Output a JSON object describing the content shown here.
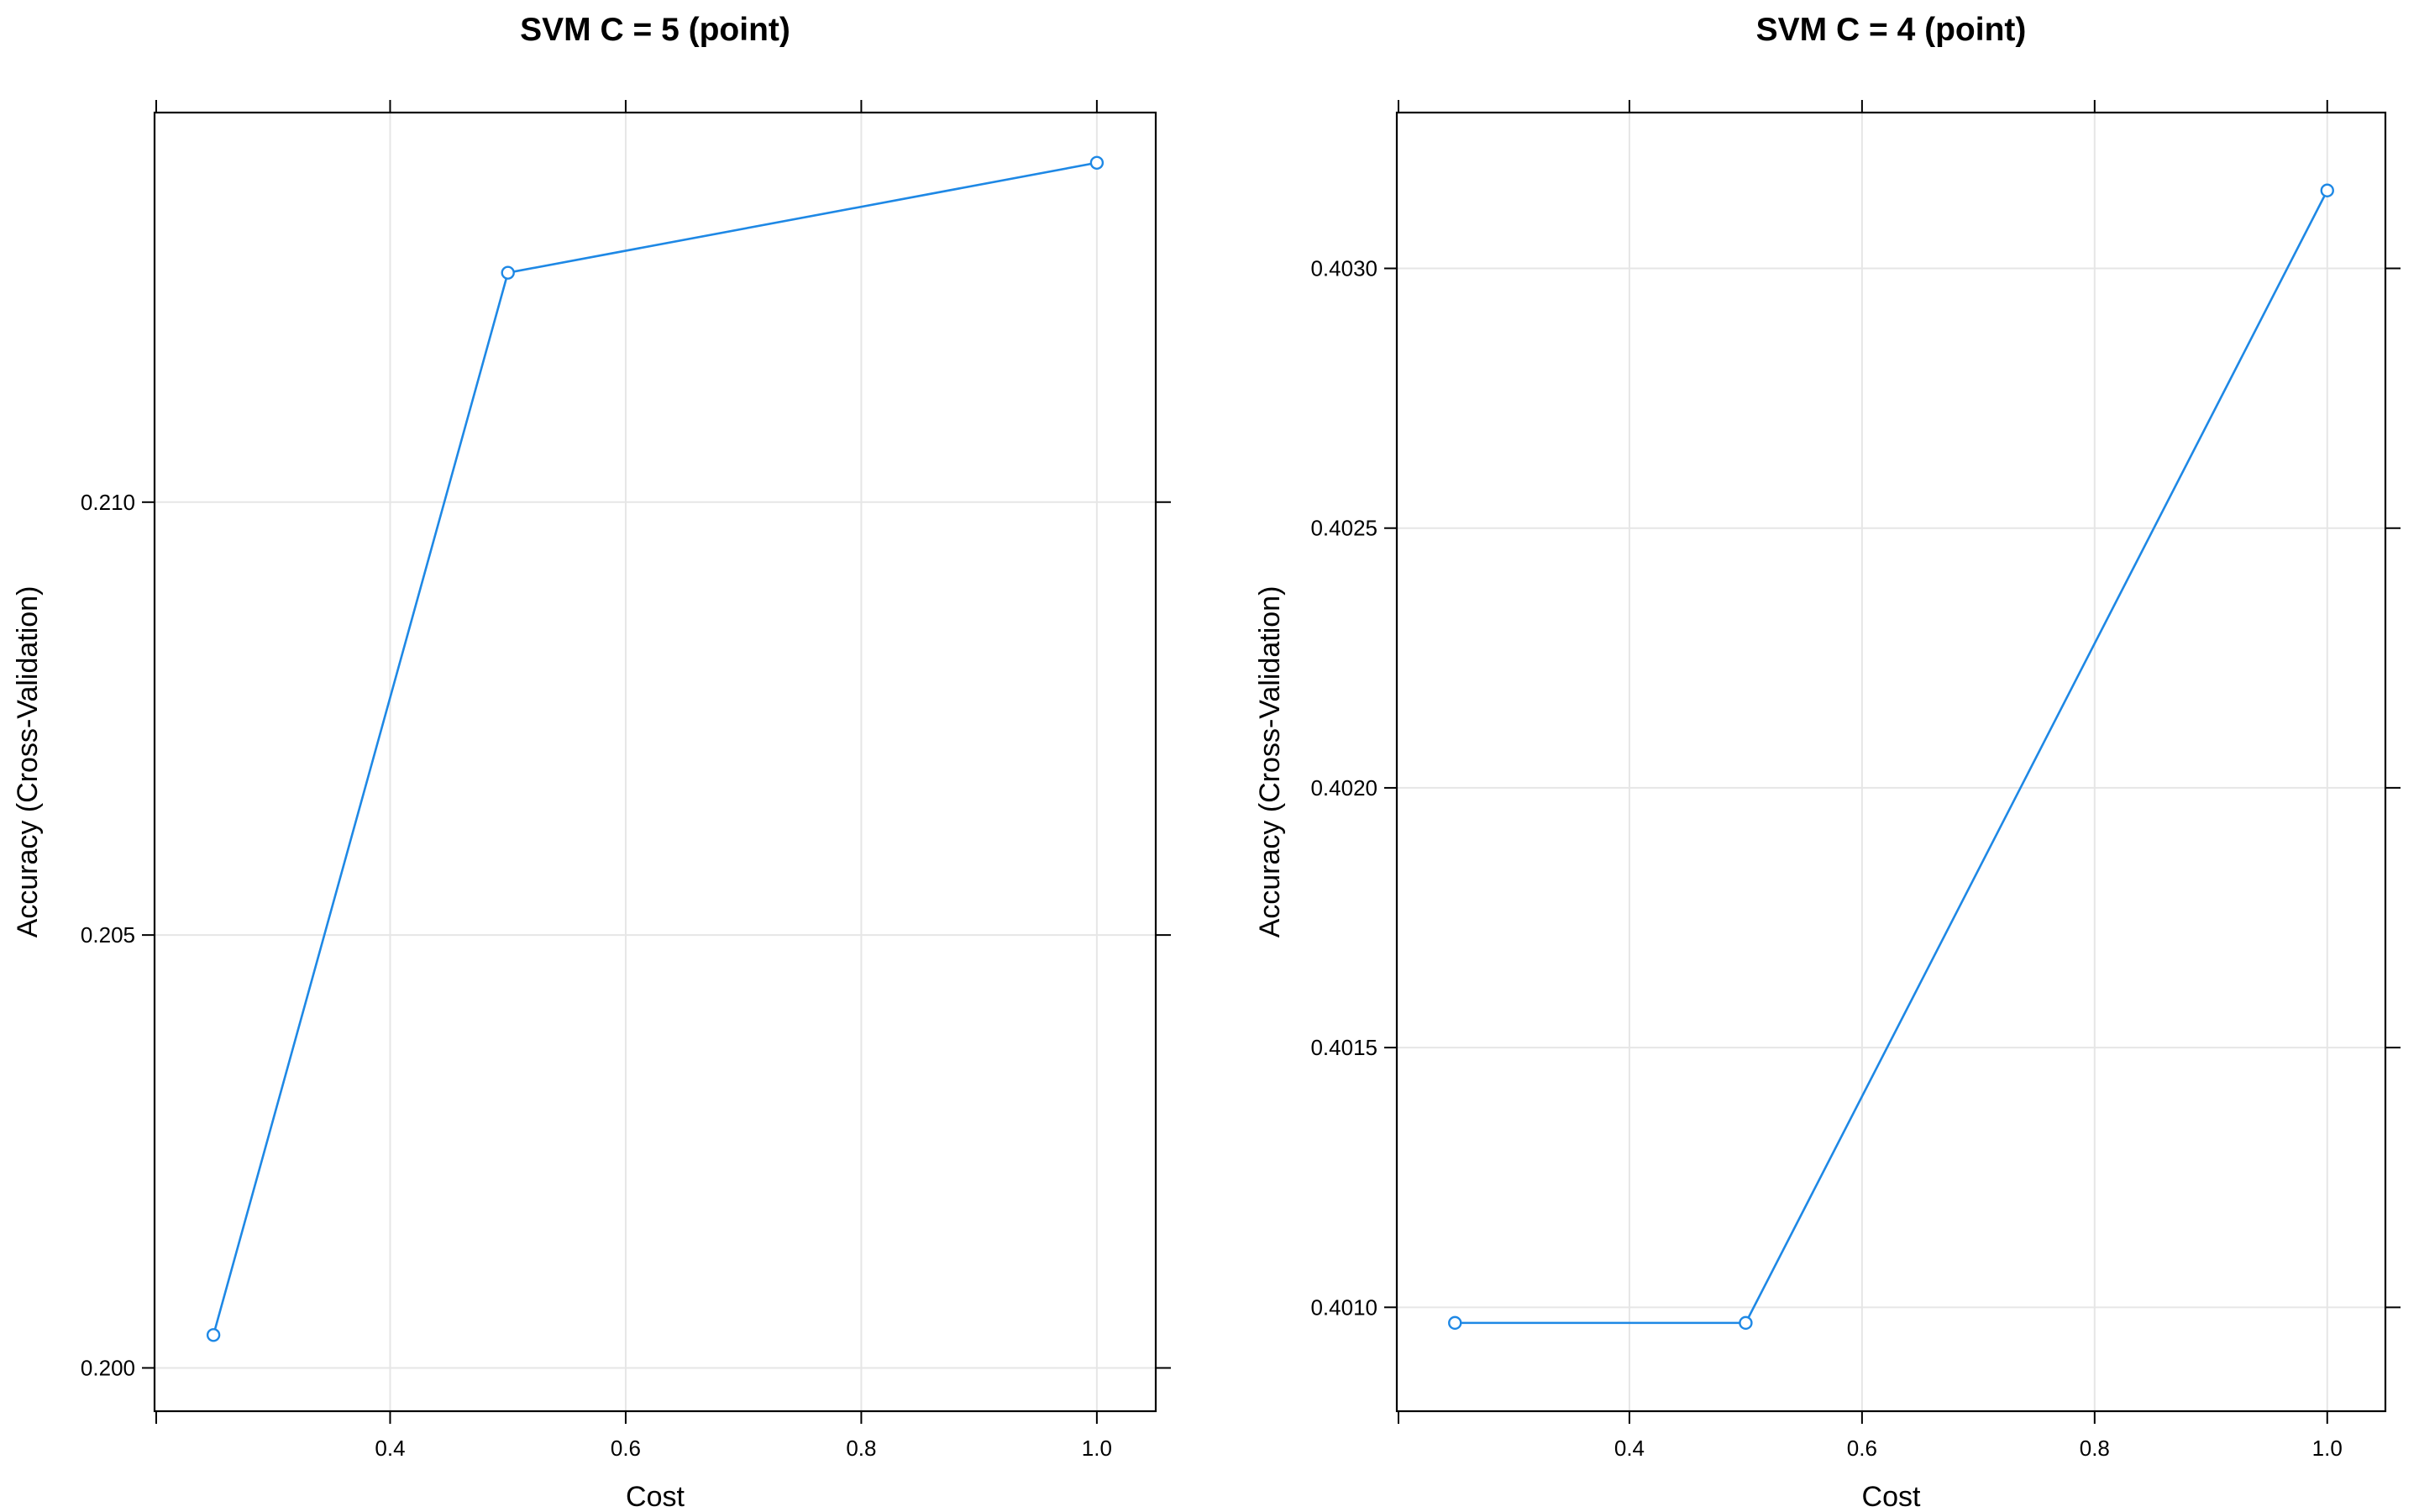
{
  "chart_data": [
    {
      "type": "line",
      "title": "SVM C = 5 (point)",
      "xlabel": "Cost",
      "ylabel": "Accuracy (Cross-Validation)",
      "x": [
        0.25,
        0.5,
        1.0
      ],
      "series": [
        {
          "values": [
            0.20038,
            0.21265,
            0.21392
          ],
          "color": "#1e88e5",
          "marker": "open-circle"
        }
      ],
      "xlim": [
        0.2,
        1.05
      ],
      "ylim": [
        0.1995,
        0.2145
      ],
      "xticks": [
        0.4,
        0.6,
        0.8,
        1.0
      ],
      "xtick_labels": [
        "0.4",
        "0.6",
        "0.8",
        "1.0"
      ],
      "yticks": [
        0.2,
        0.205,
        0.21
      ],
      "ytick_labels": [
        "0.200",
        "0.205",
        "0.210"
      ],
      "grid": true,
      "legend": "none"
    },
    {
      "type": "line",
      "title": "SVM C = 4 (point)",
      "xlabel": "Cost",
      "ylabel": "Accuracy (Cross-Validation)",
      "x": [
        0.25,
        0.5,
        1.0
      ],
      "series": [
        {
          "values": [
            0.40097,
            0.40097,
            0.40315
          ],
          "color": "#1e88e5",
          "marker": "open-circle"
        }
      ],
      "xlim": [
        0.2,
        1.05
      ],
      "ylim": [
        0.4008,
        0.4033
      ],
      "xticks": [
        0.4,
        0.6,
        0.8,
        1.0
      ],
      "xtick_labels": [
        "0.4",
        "0.6",
        "0.8",
        "1.0"
      ],
      "yticks": [
        0.401,
        0.4015,
        0.402,
        0.4025,
        0.403
      ],
      "ytick_labels": [
        "0.4010",
        "0.4015",
        "0.4020",
        "0.4025",
        "0.4030"
      ],
      "grid": true,
      "legend": "none"
    }
  ]
}
